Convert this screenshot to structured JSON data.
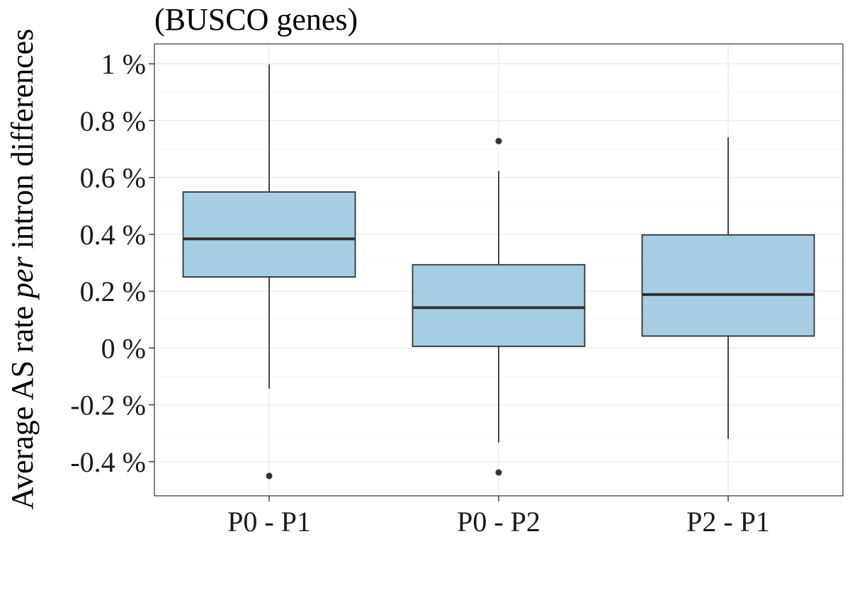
{
  "chart_data": {
    "type": "boxplot",
    "title": "(BUSCO genes)",
    "ylabel": {
      "prefix": "Average AS rate ",
      "italic": "per",
      "suffix": " intron differences"
    },
    "xlabel": "",
    "ylim": [
      -0.52,
      1.07
    ],
    "y_ticks": [
      {
        "value": 1.0,
        "label": "1 %"
      },
      {
        "value": 0.8,
        "label": "0.8 %"
      },
      {
        "value": 0.6,
        "label": "0.6 %"
      },
      {
        "value": 0.4,
        "label": "0.4 %"
      },
      {
        "value": 0.2,
        "label": "0.2 %"
      },
      {
        "value": 0.0,
        "label": "0 %"
      },
      {
        "value": -0.2,
        "label": "-0.2 %"
      },
      {
        "value": -0.4,
        "label": "-0.4 %"
      }
    ],
    "categories": [
      "P0 - P1",
      "P0 - P2",
      "P2 - P1"
    ],
    "boxes": [
      {
        "category": "P0 - P1",
        "whisker_low": -0.143,
        "q1": 0.25,
        "median": 0.384,
        "q3": 0.549,
        "whisker_high": 0.998,
        "outliers": [
          -0.45
        ]
      },
      {
        "category": "P0 - P2",
        "whisker_low": -0.332,
        "q1": 0.006,
        "median": 0.142,
        "q3": 0.293,
        "whisker_high": 0.623,
        "outliers": [
          0.728,
          -0.438
        ]
      },
      {
        "category": "P2 - P1",
        "whisker_low": -0.32,
        "q1": 0.042,
        "median": 0.188,
        "q3": 0.398,
        "whisker_high": 0.741,
        "outliers": []
      }
    ],
    "grid": true,
    "colors": {
      "box_fill": "#a6cee3",
      "box_stroke": "#333333",
      "grid_major": "#ebebeb",
      "grid_minor": "#f5f5f5",
      "panel_border": "#333333"
    }
  }
}
